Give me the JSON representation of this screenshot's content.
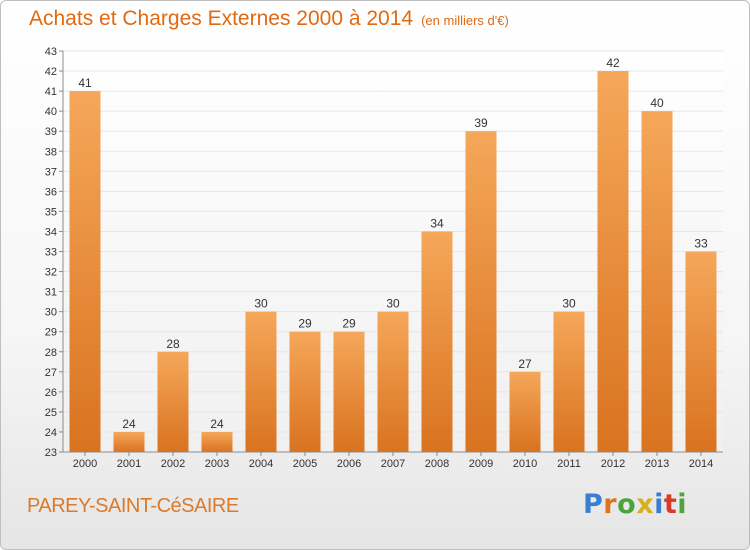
{
  "title": "Achats et Charges Externes 2000 à 2014",
  "unit": "(en milliers d'€)",
  "commune": "PAREY-SAINT-CéSAIRE",
  "logo": {
    "text": "Proxiti",
    "colors": [
      "#3a7ecf",
      "#e0741c",
      "#4aa53a",
      "#d6b020",
      "#3a7ecf",
      "#d93a2a",
      "#4aa53a"
    ]
  },
  "colors": {
    "title": "#e06a12",
    "bar_light": "#f5a75a",
    "bar_dark": "#d9731f",
    "grid": "#e6e6e6",
    "axis": "#8c8c8c"
  },
  "chart_data": {
    "type": "bar",
    "categories": [
      "2000",
      "2001",
      "2002",
      "2003",
      "2004",
      "2005",
      "2006",
      "2007",
      "2008",
      "2009",
      "2010",
      "2011",
      "2012",
      "2013",
      "2014"
    ],
    "values": [
      41,
      24,
      28,
      24,
      30,
      29,
      29,
      30,
      34,
      39,
      27,
      30,
      42,
      40,
      33
    ],
    "ylim": [
      23,
      43
    ],
    "yticks": [
      23,
      24,
      25,
      26,
      27,
      28,
      29,
      30,
      31,
      32,
      33,
      34,
      35,
      36,
      37,
      38,
      39,
      40,
      41,
      42,
      43
    ],
    "grid": true,
    "data_labels": true
  }
}
